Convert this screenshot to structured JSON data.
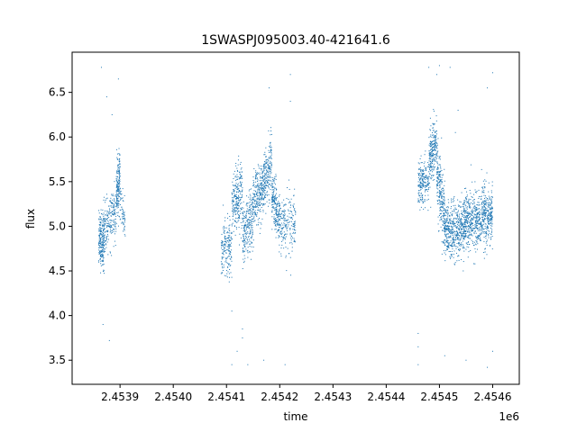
{
  "chart_data": {
    "type": "scatter",
    "title": "1SWASPJ095003.40-421641.6",
    "xlabel": "time",
    "ylabel": "flux",
    "x_offset_label": "1e6",
    "xlim": [
      2.45381,
      2.45465
    ],
    "ylim": [
      3.23,
      6.95
    ],
    "x_ticks": [
      2.4539,
      2.454,
      2.4541,
      2.4542,
      2.4543,
      2.4544,
      2.4545,
      2.4546
    ],
    "x_tick_labels": [
      "2.4539",
      "2.4540",
      "2.4541",
      "2.4542",
      "2.4543",
      "2.4544",
      "2.4545",
      "2.4546"
    ],
    "y_ticks": [
      3.5,
      4.0,
      4.5,
      5.0,
      5.5,
      6.0,
      6.5
    ],
    "y_tick_labels": [
      "3.5",
      "4.0",
      "4.5",
      "5.0",
      "5.5",
      "6.0",
      "6.5"
    ],
    "grid": false,
    "marker_color": "#1f77b4",
    "clusters": [
      {
        "x_range": [
          2.45386,
          2.45387
        ],
        "y_center": 4.85,
        "y_spread": 0.28,
        "trend": 0.0,
        "n": 220
      },
      {
        "x_range": [
          2.45387,
          2.453893
        ],
        "y_center": 5.05,
        "y_spread": 0.25,
        "trend": 0.2,
        "n": 200
      },
      {
        "x_range": [
          2.453893,
          2.4539
        ],
        "y_center": 5.45,
        "y_spread": 0.3,
        "trend": 0.25,
        "n": 170
      },
      {
        "x_range": [
          2.4539,
          2.45391
        ],
        "y_center": 5.15,
        "y_spread": 0.2,
        "trend": -0.2,
        "n": 60
      },
      {
        "x_range": [
          2.45409,
          2.45411
        ],
        "y_center": 4.75,
        "y_spread": 0.28,
        "trend": 0.0,
        "n": 180
      },
      {
        "x_range": [
          2.45411,
          2.45413
        ],
        "y_center": 5.3,
        "y_spread": 0.35,
        "trend": 0.2,
        "n": 240
      },
      {
        "x_range": [
          2.45413,
          2.45415
        ],
        "y_center": 5.0,
        "y_spread": 0.3,
        "trend": 0.2,
        "n": 240
      },
      {
        "x_range": [
          2.45415,
          2.45417
        ],
        "y_center": 5.35,
        "y_spread": 0.28,
        "trend": 0.15,
        "n": 260
      },
      {
        "x_range": [
          2.45417,
          2.454185
        ],
        "y_center": 5.6,
        "y_spread": 0.3,
        "trend": 0.2,
        "n": 200
      },
      {
        "x_range": [
          2.454185,
          2.4542
        ],
        "y_center": 5.2,
        "y_spread": 0.28,
        "trend": -0.3,
        "n": 220
      },
      {
        "x_range": [
          2.4542,
          2.45423
        ],
        "y_center": 5.0,
        "y_spread": 0.3,
        "trend": 0.0,
        "n": 200
      },
      {
        "x_range": [
          2.45446,
          2.45448
        ],
        "y_center": 5.5,
        "y_spread": 0.22,
        "trend": 0.0,
        "n": 200
      },
      {
        "x_range": [
          2.45448,
          2.454495
        ],
        "y_center": 5.85,
        "y_spread": 0.3,
        "trend": 0.3,
        "n": 220
      },
      {
        "x_range": [
          2.454495,
          2.45451
        ],
        "y_center": 5.35,
        "y_spread": 0.35,
        "trend": -0.5,
        "n": 260
      },
      {
        "x_range": [
          2.45451,
          2.45454
        ],
        "y_center": 4.95,
        "y_spread": 0.28,
        "trend": 0.0,
        "n": 400
      },
      {
        "x_range": [
          2.45454,
          2.45457
        ],
        "y_center": 5.05,
        "y_spread": 0.3,
        "trend": 0.1,
        "n": 420
      },
      {
        "x_range": [
          2.45457,
          2.4546
        ],
        "y_center": 5.1,
        "y_spread": 0.3,
        "trend": 0.05,
        "n": 420
      }
    ],
    "outliers": [
      [
        2.453865,
        6.78
      ],
      [
        2.453875,
        6.45
      ],
      [
        2.45388,
        3.72
      ],
      [
        2.453868,
        3.9
      ],
      [
        2.453897,
        6.65
      ],
      [
        2.453885,
        6.25
      ],
      [
        2.45411,
        3.45
      ],
      [
        2.45412,
        3.6
      ],
      [
        2.45413,
        3.85
      ],
      [
        2.45414,
        3.45
      ],
      [
        2.45413,
        3.75
      ],
      [
        2.45411,
        4.05
      ],
      [
        2.45418,
        6.55
      ],
      [
        2.45422,
        6.7
      ],
      [
        2.45422,
        6.4
      ],
      [
        2.45421,
        3.45
      ],
      [
        2.45417,
        3.5
      ],
      [
        2.45448,
        6.78
      ],
      [
        2.4545,
        6.8
      ],
      [
        2.45452,
        6.78
      ],
      [
        2.4546,
        6.72
      ],
      [
        2.45459,
        6.55
      ],
      [
        2.45446,
        3.45
      ],
      [
        2.45446,
        3.65
      ],
      [
        2.45446,
        3.8
      ],
      [
        2.45453,
        6.05
      ],
      [
        2.45459,
        3.42
      ],
      [
        2.4546,
        3.6
      ],
      [
        2.45451,
        3.55
      ],
      [
        2.45455,
        3.5
      ],
      [
        2.454495,
        6.7
      ],
      [
        2.454535,
        6.3
      ]
    ]
  }
}
